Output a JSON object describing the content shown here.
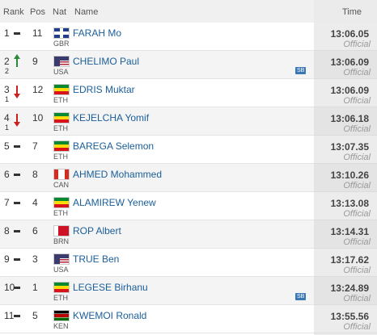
{
  "table": {
    "headers": {
      "rank": "Rank",
      "pos": "Pos",
      "nat": "Nat",
      "name": "Name",
      "time": "Time"
    },
    "rows": [
      {
        "rank": "1",
        "pos": "11",
        "nat": "GBR",
        "name": "FARAH Mo",
        "time": "13:06.05",
        "status": "Official"
      },
      {
        "rank": "2",
        "change": {
          "direction": "up",
          "places": "2"
        },
        "pos": "9",
        "nat": "USA",
        "name": "CHELIMO Paul",
        "note": "SB",
        "time": "13:06.09",
        "status": "Official"
      },
      {
        "rank": "3",
        "change": {
          "direction": "down",
          "places": "1"
        },
        "pos": "12",
        "nat": "ETH",
        "name": "EDRIS Muktar",
        "time": "13:06.09",
        "status": "Official"
      },
      {
        "rank": "4",
        "change": {
          "direction": "down",
          "places": "1"
        },
        "pos": "10",
        "nat": "ETH",
        "name": "KEJELCHA Yomif",
        "time": "13:06.18",
        "status": "Official"
      },
      {
        "rank": "5",
        "pos": "7",
        "nat": "ETH",
        "name": "BAREGA Selemon",
        "time": "13:07.35",
        "status": "Official"
      },
      {
        "rank": "6",
        "pos": "8",
        "nat": "CAN",
        "name": "AHMED Mohammed",
        "time": "13:10.26",
        "status": "Official"
      },
      {
        "rank": "7",
        "pos": "4",
        "nat": "ETH",
        "name": "ALAMIREW Yenew",
        "time": "13:13.08",
        "status": "Official"
      },
      {
        "rank": "8",
        "pos": "6",
        "nat": "BRN",
        "name": "ROP Albert",
        "time": "13:14.31",
        "status": "Official"
      },
      {
        "rank": "9",
        "pos": "3",
        "nat": "USA",
        "name": "TRUE Ben",
        "time": "13:17.62",
        "status": "Official"
      },
      {
        "rank": "10",
        "pos": "1",
        "nat": "ETH",
        "name": "LEGESE Birhanu",
        "note": "SB",
        "time": "13:24.89",
        "status": "Official"
      },
      {
        "rank": "11",
        "pos": "5",
        "nat": "KEN",
        "name": "KWEMOI Ronald",
        "time": "13:55.56",
        "status": "Official"
      }
    ]
  }
}
